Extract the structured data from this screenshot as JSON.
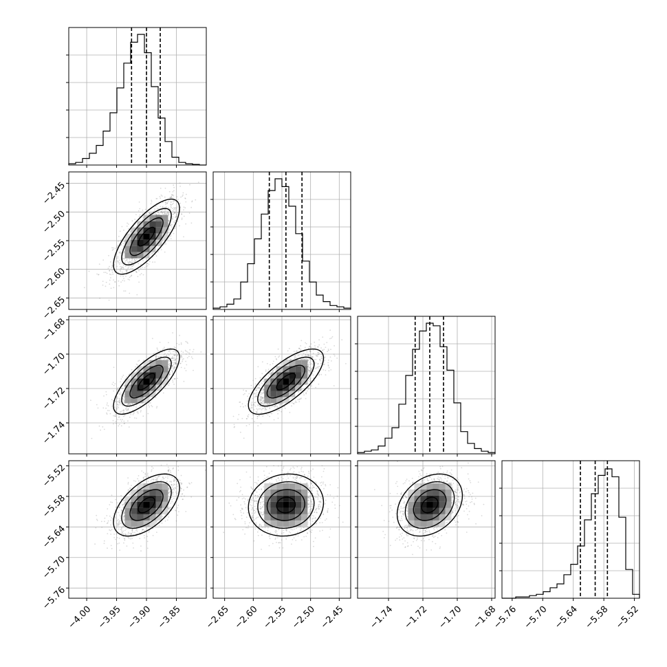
{
  "chart_data": {
    "type": "corner",
    "grid": true,
    "parameters": [
      {
        "range": [
          -4.03,
          -3.8
        ],
        "ticks": [
          -4.0,
          -3.95,
          -3.9,
          -3.85
        ],
        "tick_labels": [
          "−4.00",
          "−3.95",
          "−3.90",
          "−3.85"
        ],
        "quantiles": [
          -3.925,
          -3.9,
          -3.877
        ],
        "histogram": [
          0.01,
          0.02,
          0.05,
          0.09,
          0.15,
          0.26,
          0.4,
          0.59,
          0.78,
          0.94,
          1.0,
          0.86,
          0.6,
          0.36,
          0.18,
          0.06,
          0.02,
          0.01,
          0.005,
          0.0
        ]
      },
      {
        "range": [
          -2.67,
          -2.43
        ],
        "ticks": [
          -2.65,
          -2.6,
          -2.55,
          -2.5,
          -2.45
        ],
        "tick_labels": [
          "−2.65",
          "−2.60",
          "−2.55",
          "−2.50",
          "−2.45"
        ],
        "quantiles": [
          -2.572,
          -2.543,
          -2.515
        ],
        "histogram": [
          0.01,
          0.02,
          0.04,
          0.08,
          0.21,
          0.35,
          0.54,
          0.73,
          0.91,
          1.0,
          0.94,
          0.79,
          0.58,
          0.37,
          0.21,
          0.11,
          0.06,
          0.03,
          0.02,
          0.01
        ]
      },
      {
        "range": [
          -1.758,
          -1.678
        ],
        "ticks": [
          -1.74,
          -1.72,
          -1.7,
          -1.68
        ],
        "tick_labels": [
          "−1.74",
          "−1.72",
          "−1.70",
          "−1.68"
        ],
        "quantiles": [
          -1.7245,
          -1.716,
          -1.708
        ],
        "histogram": [
          0.01,
          0.02,
          0.03,
          0.06,
          0.12,
          0.2,
          0.38,
          0.6,
          0.8,
          0.94,
          1.0,
          0.98,
          0.82,
          0.64,
          0.39,
          0.17,
          0.08,
          0.04,
          0.02,
          0.01
        ]
      },
      {
        "range": [
          -5.78,
          -5.51
        ],
        "ticks": [
          -5.76,
          -5.7,
          -5.64,
          -5.58,
          -5.52
        ],
        "tick_labels": [
          "−5.76",
          "−5.70",
          "−5.64",
          "−5.58",
          "−5.52"
        ],
        "quantiles": [
          -5.626,
          -5.597,
          -5.573
        ],
        "histogram": [
          0.0,
          0.0,
          0.01,
          0.01,
          0.02,
          0.03,
          0.05,
          0.08,
          0.11,
          0.18,
          0.26,
          0.4,
          0.6,
          0.8,
          0.94,
          0.99,
          0.93,
          0.62,
          0.22,
          0.03
        ]
      }
    ],
    "correlations": {
      "1-0": 0.75,
      "2-0": 0.75,
      "2-1": 0.72,
      "3-0": 0.55,
      "3-1": 0.08,
      "3-2": 0.3
    },
    "contour_levels_sigma": [
      0.5,
      1.0,
      1.5,
      2.0
    ],
    "hist_bins": 20
  }
}
